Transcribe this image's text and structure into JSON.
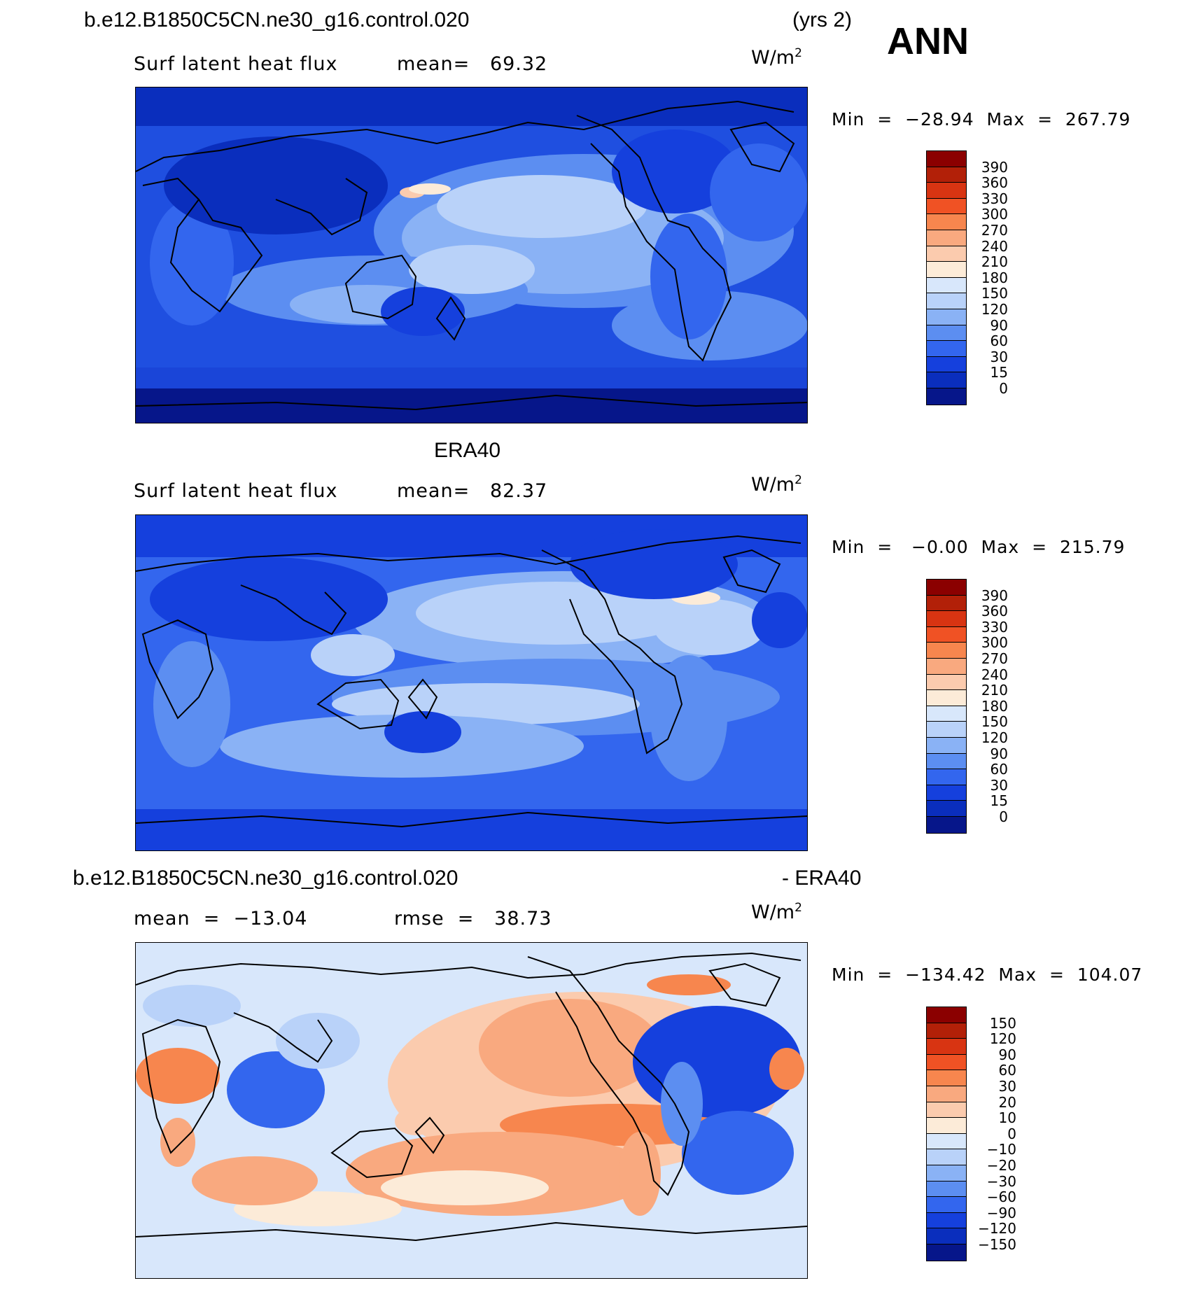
{
  "header": {
    "case": "b.e12.B1850C5CN.ne30_g16.control.020",
    "years": "(yrs 2)",
    "season": "ANN"
  },
  "panels": [
    {
      "id": "model",
      "title": "",
      "variable": "Surf latent heat flux",
      "stat1": "mean=   69.32",
      "stat2": "",
      "units": "W/m",
      "units_exp": "2",
      "minmax": "Min  =  −28.94  Max  =  267.79",
      "colorbar": {
        "labels": [
          "390",
          "360",
          "330",
          "300",
          "270",
          "240",
          "210",
          "180",
          "150",
          "120",
          "90",
          "60",
          "30",
          "15",
          "0"
        ],
        "colors": [
          "#8b0000",
          "#b22008",
          "#d83412",
          "#f05224",
          "#f7864e",
          "#f9a97f",
          "#fbcbae",
          "#fcebd8",
          "#d8e7fb",
          "#b9d2f9",
          "#8ab2f5",
          "#5c8ef1",
          "#3366ee",
          "#1540dd",
          "#0a2ebd",
          "#06168a"
        ]
      }
    },
    {
      "id": "obs",
      "title": "ERA40",
      "variable": "Surf latent heat flux",
      "stat1": "mean=   82.37",
      "stat2": "",
      "units": "W/m",
      "units_exp": "2",
      "minmax": "Min  =   −0.00  Max  =  215.79",
      "colorbar": {
        "labels": [
          "390",
          "360",
          "330",
          "300",
          "270",
          "240",
          "210",
          "180",
          "150",
          "120",
          "90",
          "60",
          "30",
          "15",
          "0"
        ],
        "colors": [
          "#8b0000",
          "#b22008",
          "#d83412",
          "#f05224",
          "#f7864e",
          "#f9a97f",
          "#fbcbae",
          "#fcebd8",
          "#d8e7fb",
          "#b9d2f9",
          "#8ab2f5",
          "#5c8ef1",
          "#3366ee",
          "#1540dd",
          "#0a2ebd",
          "#06168a"
        ]
      }
    },
    {
      "id": "diff",
      "title": "b.e12.B1850C5CN.ne30_g16.control.020",
      "title_right": "- ERA40",
      "variable": "",
      "stat1": "mean  =  −13.04",
      "stat2": "rmse  =   38.73",
      "units": "W/m",
      "units_exp": "2",
      "minmax": "Min  =  −134.42  Max  =  104.07",
      "colorbar": {
        "labels": [
          "150",
          "120",
          "90",
          "60",
          "30",
          "20",
          "10",
          "0",
          "−10",
          "−20",
          "−30",
          "−60",
          "−90",
          "−120",
          "−150"
        ],
        "colors": [
          "#8b0000",
          "#b22008",
          "#d83412",
          "#f05224",
          "#f7864e",
          "#f9a97f",
          "#fbcbae",
          "#fcebd8",
          "#d8e7fb",
          "#b9d2f9",
          "#8ab2f5",
          "#5c8ef1",
          "#3366ee",
          "#1540dd",
          "#0a2ebd",
          "#06168a"
        ]
      }
    }
  ]
}
